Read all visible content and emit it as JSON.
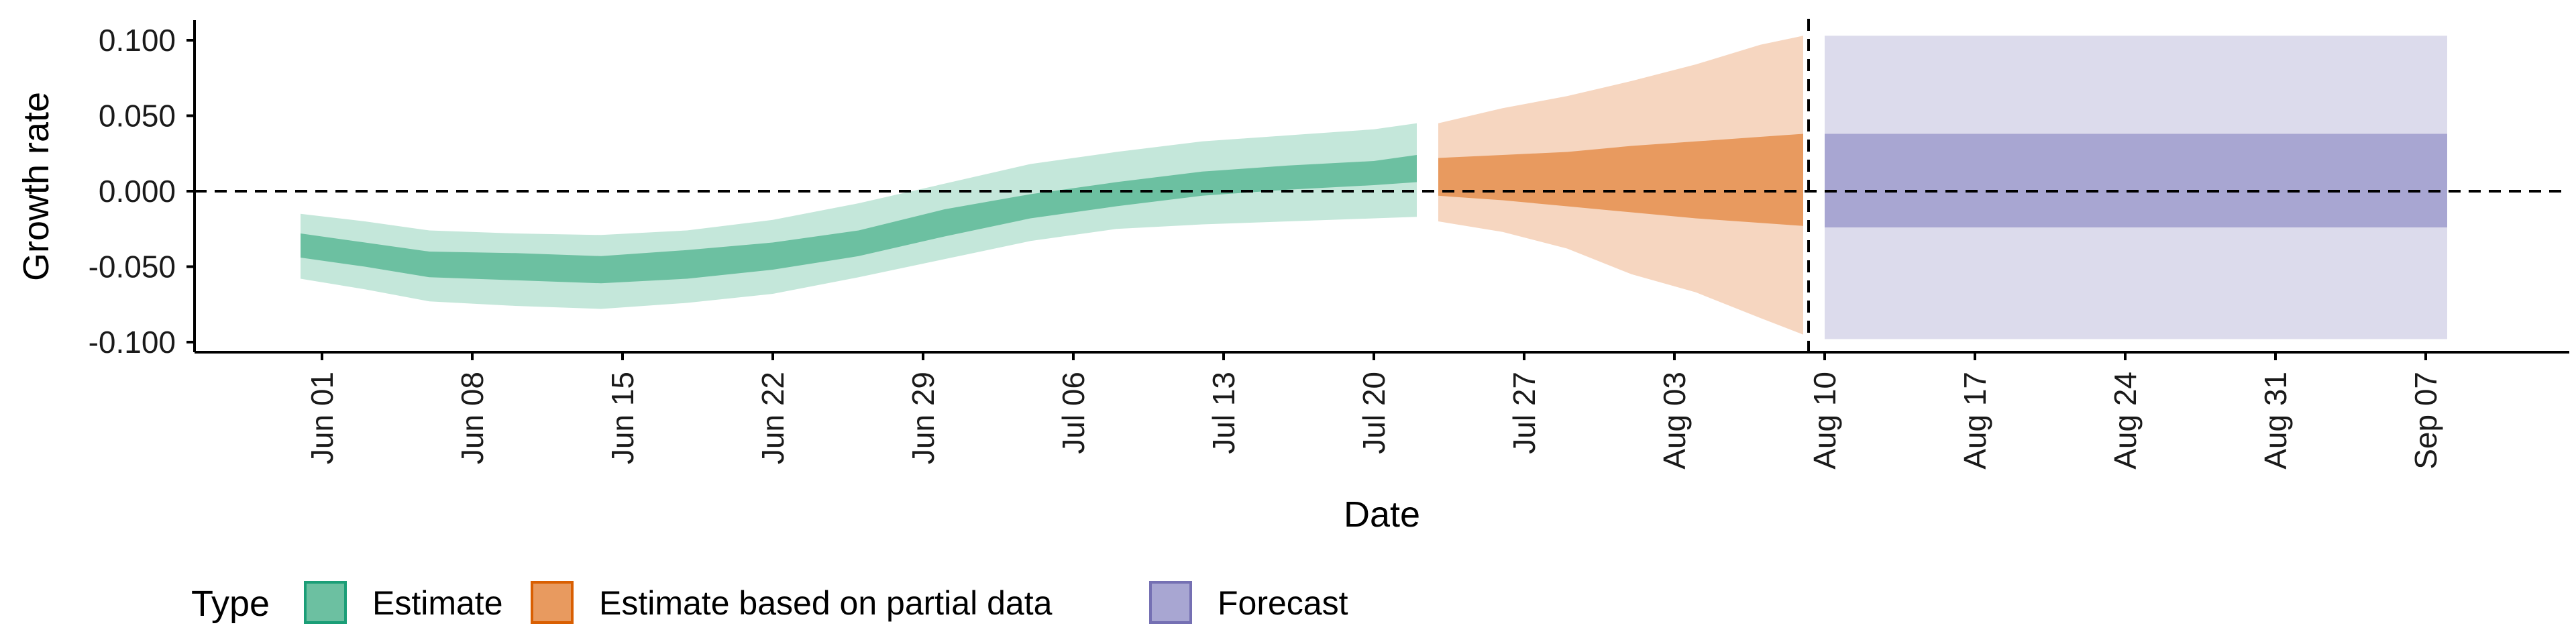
{
  "chart_data": {
    "type": "area",
    "xlabel": "Date",
    "ylabel": "Growth rate",
    "ylim": [
      -0.105,
      0.11
    ],
    "y_ticks": [
      {
        "value": 0.1,
        "label": "0.100"
      },
      {
        "value": 0.05,
        "label": "0.050"
      },
      {
        "value": 0.0,
        "label": "0.000"
      },
      {
        "value": -0.05,
        "label": "-0.050"
      },
      {
        "value": -0.1,
        "label": "-0.100"
      }
    ],
    "x_ticks": [
      {
        "date": "2020-06-01",
        "label": "Jun 01"
      },
      {
        "date": "2020-06-08",
        "label": "Jun 08"
      },
      {
        "date": "2020-06-15",
        "label": "Jun 15"
      },
      {
        "date": "2020-06-22",
        "label": "Jun 22"
      },
      {
        "date": "2020-06-29",
        "label": "Jun 29"
      },
      {
        "date": "2020-07-06",
        "label": "Jul 06"
      },
      {
        "date": "2020-07-13",
        "label": "Jul 13"
      },
      {
        "date": "2020-07-20",
        "label": "Jul 20"
      },
      {
        "date": "2020-07-27",
        "label": "Jul 27"
      },
      {
        "date": "2020-08-03",
        "label": "Aug 03"
      },
      {
        "date": "2020-08-10",
        "label": "Aug 10"
      },
      {
        "date": "2020-08-17",
        "label": "Aug 17"
      },
      {
        "date": "2020-08-24",
        "label": "Aug 24"
      },
      {
        "date": "2020-08-31",
        "label": "Aug 31"
      },
      {
        "date": "2020-09-07",
        "label": "Sep 07"
      }
    ],
    "reference_lines": {
      "horizontal_y": 0.0,
      "vertical_date": "2020-08-09"
    },
    "legend": {
      "title": "Type",
      "placement": "bottom-left",
      "entries": [
        {
          "label": "Estimate",
          "fill": "#6cc0a1",
          "stroke": "#1b9e77"
        },
        {
          "label": "Estimate based on partial data",
          "fill": "#e89a5f",
          "stroke": "#d95f02"
        },
        {
          "label": "Forecast",
          "fill": "#a8a6d2",
          "stroke": "#7570b3"
        }
      ]
    },
    "series": [
      {
        "name": "Estimate",
        "color_outer": "#c4e7da",
        "color_inner": "#6cc0a1",
        "points": [
          {
            "date": "2020-05-31",
            "lo90": -0.058,
            "lo50": -0.044,
            "hi50": -0.028,
            "hi90": -0.015
          },
          {
            "date": "2020-06-03",
            "lo90": -0.065,
            "lo50": -0.05,
            "hi50": -0.034,
            "hi90": -0.02
          },
          {
            "date": "2020-06-06",
            "lo90": -0.073,
            "lo50": -0.057,
            "hi50": -0.04,
            "hi90": -0.026
          },
          {
            "date": "2020-06-10",
            "lo90": -0.076,
            "lo50": -0.059,
            "hi50": -0.041,
            "hi90": -0.028
          },
          {
            "date": "2020-06-14",
            "lo90": -0.078,
            "lo50": -0.061,
            "hi50": -0.043,
            "hi90": -0.029
          },
          {
            "date": "2020-06-18",
            "lo90": -0.074,
            "lo50": -0.058,
            "hi50": -0.039,
            "hi90": -0.026
          },
          {
            "date": "2020-06-22",
            "lo90": -0.068,
            "lo50": -0.052,
            "hi50": -0.034,
            "hi90": -0.019
          },
          {
            "date": "2020-06-26",
            "lo90": -0.057,
            "lo50": -0.043,
            "hi50": -0.026,
            "hi90": -0.008
          },
          {
            "date": "2020-06-30",
            "lo90": -0.045,
            "lo50": -0.03,
            "hi50": -0.012,
            "hi90": 0.005
          },
          {
            "date": "2020-07-04",
            "lo90": -0.033,
            "lo50": -0.018,
            "hi50": -0.002,
            "hi90": 0.018
          },
          {
            "date": "2020-07-08",
            "lo90": -0.025,
            "lo50": -0.01,
            "hi50": 0.006,
            "hi90": 0.026
          },
          {
            "date": "2020-07-12",
            "lo90": -0.022,
            "lo50": -0.003,
            "hi50": 0.013,
            "hi90": 0.033
          },
          {
            "date": "2020-07-16",
            "lo90": -0.02,
            "lo50": 0.001,
            "hi50": 0.017,
            "hi90": 0.037
          },
          {
            "date": "2020-07-20",
            "lo90": -0.018,
            "lo50": 0.004,
            "hi50": 0.02,
            "hi90": 0.041
          },
          {
            "date": "2020-07-22",
            "lo90": -0.017,
            "lo50": 0.006,
            "hi50": 0.024,
            "hi90": 0.045
          }
        ]
      },
      {
        "name": "Estimate based on partial data",
        "color_outer": "#f6d6c0",
        "color_inner": "#e89a5f",
        "points": [
          {
            "date": "2020-07-23",
            "lo90": -0.02,
            "lo50": -0.003,
            "hi50": 0.022,
            "hi90": 0.045
          },
          {
            "date": "2020-07-26",
            "lo90": -0.027,
            "lo50": -0.006,
            "hi50": 0.024,
            "hi90": 0.055
          },
          {
            "date": "2020-07-29",
            "lo90": -0.038,
            "lo50": -0.01,
            "hi50": 0.026,
            "hi90": 0.063
          },
          {
            "date": "2020-08-01",
            "lo90": -0.055,
            "lo50": -0.014,
            "hi50": 0.03,
            "hi90": 0.073
          },
          {
            "date": "2020-08-04",
            "lo90": -0.067,
            "lo50": -0.018,
            "hi50": 0.033,
            "hi90": 0.084
          },
          {
            "date": "2020-08-07",
            "lo90": -0.084,
            "lo50": -0.021,
            "hi50": 0.036,
            "hi90": 0.097
          },
          {
            "date": "2020-08-09",
            "lo90": -0.095,
            "lo50": -0.023,
            "hi50": 0.038,
            "hi90": 0.103
          }
        ]
      },
      {
        "name": "Forecast",
        "color_outer": "#dcdbec",
        "color_inner": "#a8a6d2",
        "points": [
          {
            "date": "2020-08-10",
            "lo90": -0.098,
            "lo50": -0.024,
            "hi50": 0.038,
            "hi90": 0.103
          },
          {
            "date": "2020-09-08",
            "lo90": -0.098,
            "lo50": -0.024,
            "hi50": 0.038,
            "hi90": 0.103
          }
        ]
      }
    ]
  }
}
